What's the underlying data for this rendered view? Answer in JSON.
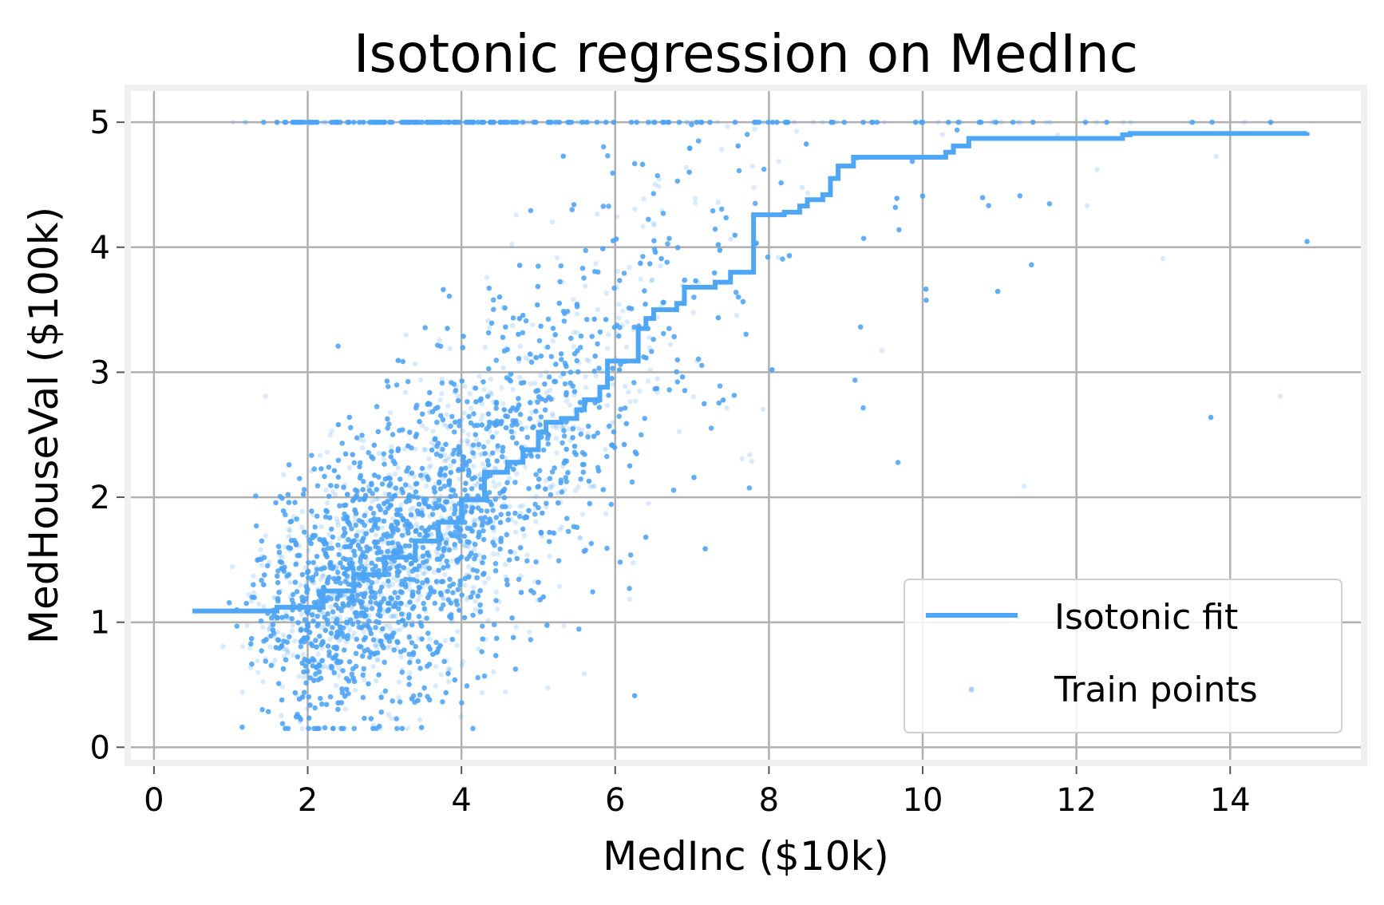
{
  "colors": {
    "accent": "#4fa6f5",
    "grid": "#b0b0b0",
    "frame_bg": "#f0f0f0",
    "plot_bg": "#ffffff"
  },
  "chart_data": {
    "type": "scatter",
    "title": "Isotonic regression on MedInc",
    "xlabel": "MedInc ($10k)",
    "ylabel": "MedHouseVal ($100k)",
    "xlim": [
      -0.3,
      15.7
    ],
    "ylim": [
      -0.1,
      5.25
    ],
    "xticks": [
      0,
      2,
      4,
      6,
      8,
      10,
      12,
      14
    ],
    "yticks": [
      0,
      1,
      2,
      3,
      4,
      5
    ],
    "grid": true,
    "legend_position": "lower-right",
    "series": [
      {
        "name": "Isotonic fit",
        "type": "step-line",
        "color": "#4fa6f5",
        "x": [
          0.5,
          1.6,
          2.2,
          2.6,
          3.0,
          3.4,
          3.7,
          4.0,
          4.3,
          4.6,
          4.8,
          5.0,
          5.1,
          5.3,
          5.5,
          5.6,
          5.8,
          5.9,
          6.3,
          6.4,
          6.5,
          6.8,
          6.9,
          7.3,
          7.5,
          7.8,
          7.8,
          8.2,
          8.4,
          8.5,
          8.7,
          8.8,
          8.9,
          9.1,
          10.3,
          10.4,
          10.6,
          12.6,
          12.7,
          15.0
        ],
        "y": [
          1.09,
          1.12,
          1.25,
          1.38,
          1.52,
          1.65,
          1.8,
          1.98,
          2.2,
          2.28,
          2.38,
          2.52,
          2.6,
          2.63,
          2.7,
          2.78,
          2.88,
          3.09,
          3.35,
          3.43,
          3.5,
          3.55,
          3.68,
          3.72,
          3.8,
          3.98,
          4.26,
          4.28,
          4.33,
          4.38,
          4.42,
          4.55,
          4.65,
          4.72,
          4.76,
          4.81,
          4.87,
          4.9,
          4.91,
          4.92
        ]
      },
      {
        "name": "Train points",
        "type": "scatter",
        "color": "#4fa6f5",
        "count": 16000,
        "x_range": [
          0.5,
          15.0
        ],
        "y_range": [
          0.15,
          5.0
        ],
        "capped_value": 5.0
      }
    ]
  }
}
